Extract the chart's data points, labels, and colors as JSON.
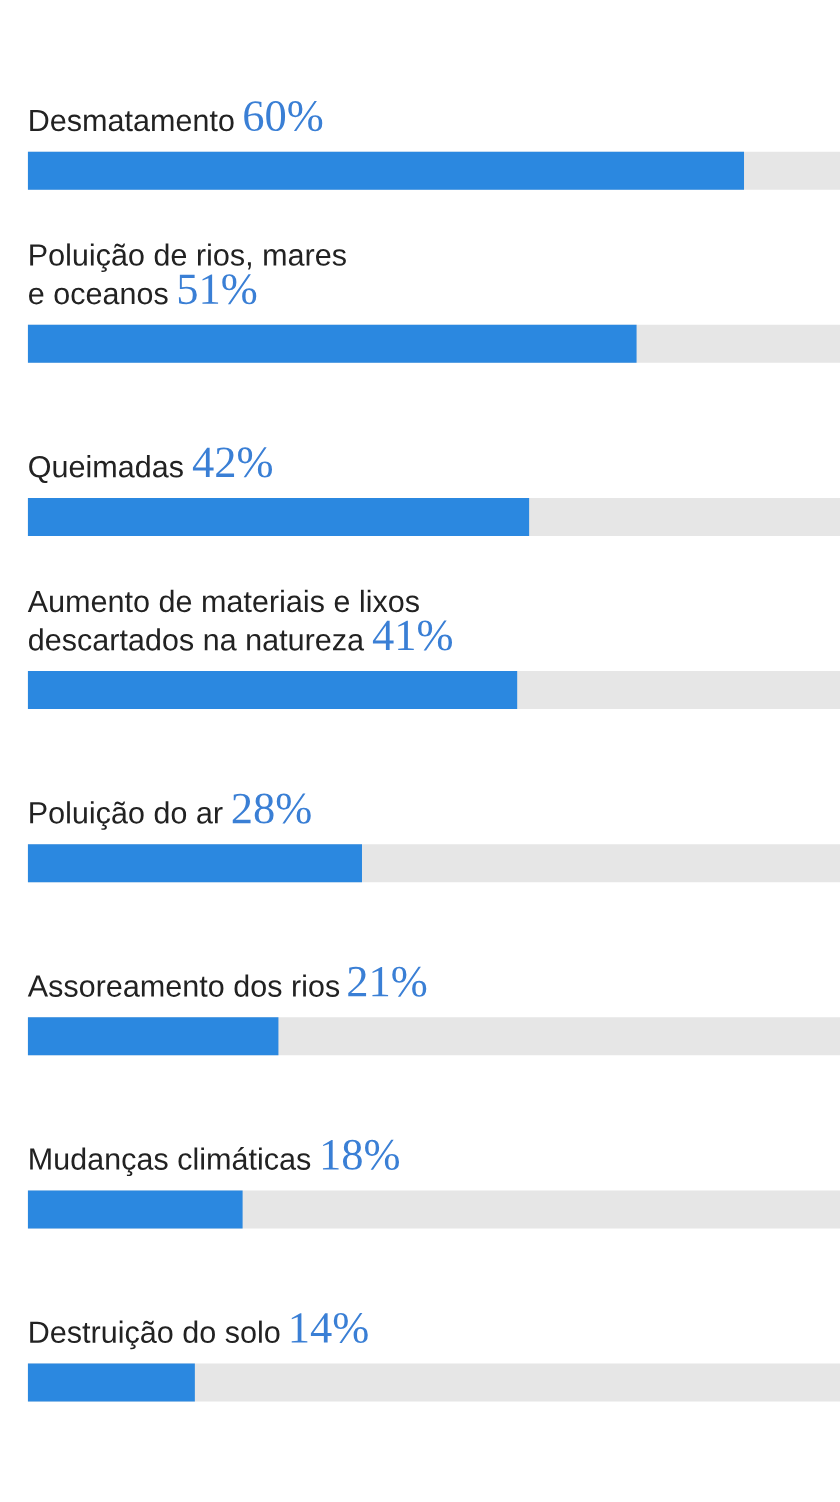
{
  "chart_data": {
    "type": "bar",
    "orientation": "horizontal",
    "categories": [
      "Desmatamento",
      "Poluição de rios, mares\ne oceanos",
      "Queimadas",
      "Aumento de materiais e lixos\ndescartados na natureza",
      "Poluição do ar",
      "Assoreamento dos rios",
      "Mudanças climáticas",
      "Destruição do solo"
    ],
    "values": [
      60,
      51,
      42,
      41,
      28,
      21,
      18,
      14
    ],
    "value_labels": [
      "60%",
      "51%",
      "42%",
      "41%",
      "28%",
      "21%",
      "18%",
      "14%"
    ],
    "color": "#2b88e0",
    "legend": false
  }
}
